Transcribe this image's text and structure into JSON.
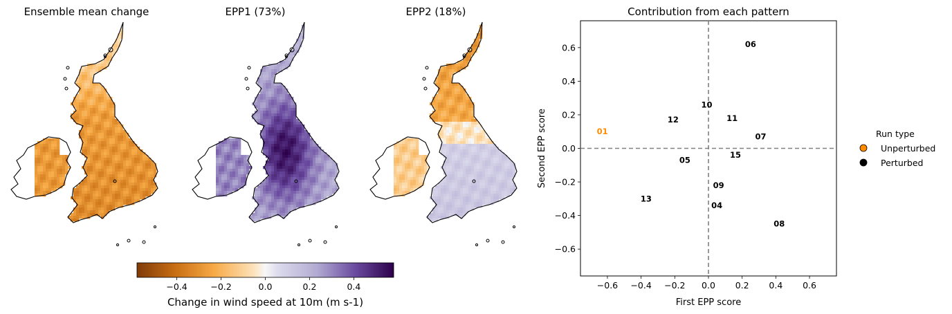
{
  "maps": [
    {
      "title": "Ensemble mean change",
      "field": "mean"
    },
    {
      "title": "EPP1 (73%)",
      "field": "epp1"
    },
    {
      "title": "EPP2 (18%)",
      "field": "epp2"
    }
  ],
  "colorbar": {
    "label": "Change in wind speed at 10m (m s-1)",
    "ticks": [
      "−0.4",
      "−0.2",
      "0.0",
      "0.2",
      "0.4"
    ],
    "tick_values": [
      -0.4,
      -0.2,
      0.0,
      0.2,
      0.4
    ],
    "range": [
      -0.58,
      0.58
    ],
    "colormap": "PuOr",
    "low_color": "#7f3b08",
    "mid_color": "#f7f7f7",
    "high_color": "#2d004b"
  },
  "chart_data": {
    "type": "scatter",
    "title": "Contribution from each pattern",
    "xlabel": "First EPP score",
    "ylabel": "Second EPP score",
    "xlim": [
      -0.76,
      0.76
    ],
    "ylim": [
      -0.76,
      0.76
    ],
    "x_ticks": [
      -0.6,
      -0.4,
      -0.2,
      0.0,
      0.2,
      0.4,
      0.6
    ],
    "y_ticks": [
      -0.6,
      -0.4,
      -0.2,
      0.0,
      0.2,
      0.4,
      0.6
    ],
    "x_tick_labels": [
      "−0.6",
      "−0.4",
      "−0.2",
      "0.0",
      "0.2",
      "0.4",
      "0.6"
    ],
    "y_tick_labels": [
      "−0.6",
      "−0.4",
      "−0.2",
      "0.0",
      "0.2",
      "0.4",
      "0.6"
    ],
    "reference_lines": {
      "x": 0.0,
      "y": 0.0,
      "style": "dashed",
      "color": "#808080"
    },
    "points": [
      {
        "label": "01",
        "x": -0.63,
        "y": 0.1,
        "run_type": "Unperturbed"
      },
      {
        "label": "04",
        "x": 0.05,
        "y": -0.34,
        "run_type": "Perturbed"
      },
      {
        "label": "05",
        "x": -0.14,
        "y": -0.07,
        "run_type": "Perturbed"
      },
      {
        "label": "06",
        "x": 0.25,
        "y": 0.62,
        "run_type": "Perturbed"
      },
      {
        "label": "07",
        "x": 0.31,
        "y": 0.07,
        "run_type": "Perturbed"
      },
      {
        "label": "08",
        "x": 0.42,
        "y": -0.45,
        "run_type": "Perturbed"
      },
      {
        "label": "09",
        "x": 0.06,
        "y": -0.22,
        "run_type": "Perturbed"
      },
      {
        "label": "10",
        "x": -0.01,
        "y": 0.26,
        "run_type": "Perturbed"
      },
      {
        "label": "11",
        "x": 0.14,
        "y": 0.18,
        "run_type": "Perturbed"
      },
      {
        "label": "12",
        "x": -0.21,
        "y": 0.17,
        "run_type": "Perturbed"
      },
      {
        "label": "13",
        "x": -0.37,
        "y": -0.3,
        "run_type": "Perturbed"
      },
      {
        "label": "15",
        "x": 0.16,
        "y": -0.04,
        "run_type": "Perturbed"
      }
    ],
    "legend": {
      "title": "Run type",
      "placement": "right",
      "entries": [
        {
          "name": "Unperturbed",
          "color": "#ff8c00"
        },
        {
          "name": "Perturbed",
          "color": "#000000"
        }
      ]
    }
  }
}
